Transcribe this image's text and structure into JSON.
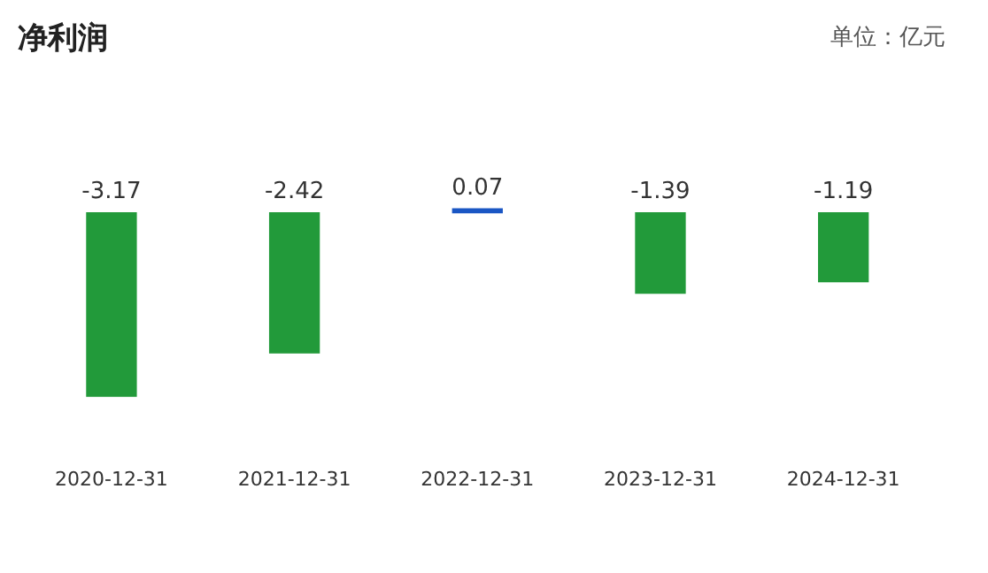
{
  "chart_data": {
    "type": "bar",
    "title": "净利润",
    "annotations": [
      "单位：亿元"
    ],
    "categories": [
      "2020-12-31",
      "2021-12-31",
      "2022-12-31",
      "2023-12-31",
      "2024-12-31"
    ],
    "values": [
      -3.17,
      -2.42,
      0.07,
      -1.39,
      -1.19
    ],
    "colors": [
      "#229a3a",
      "#229a3a",
      "#1a56c4",
      "#229a3a",
      "#229a3a"
    ],
    "data_labels": true,
    "grid": false,
    "legend": false
  }
}
